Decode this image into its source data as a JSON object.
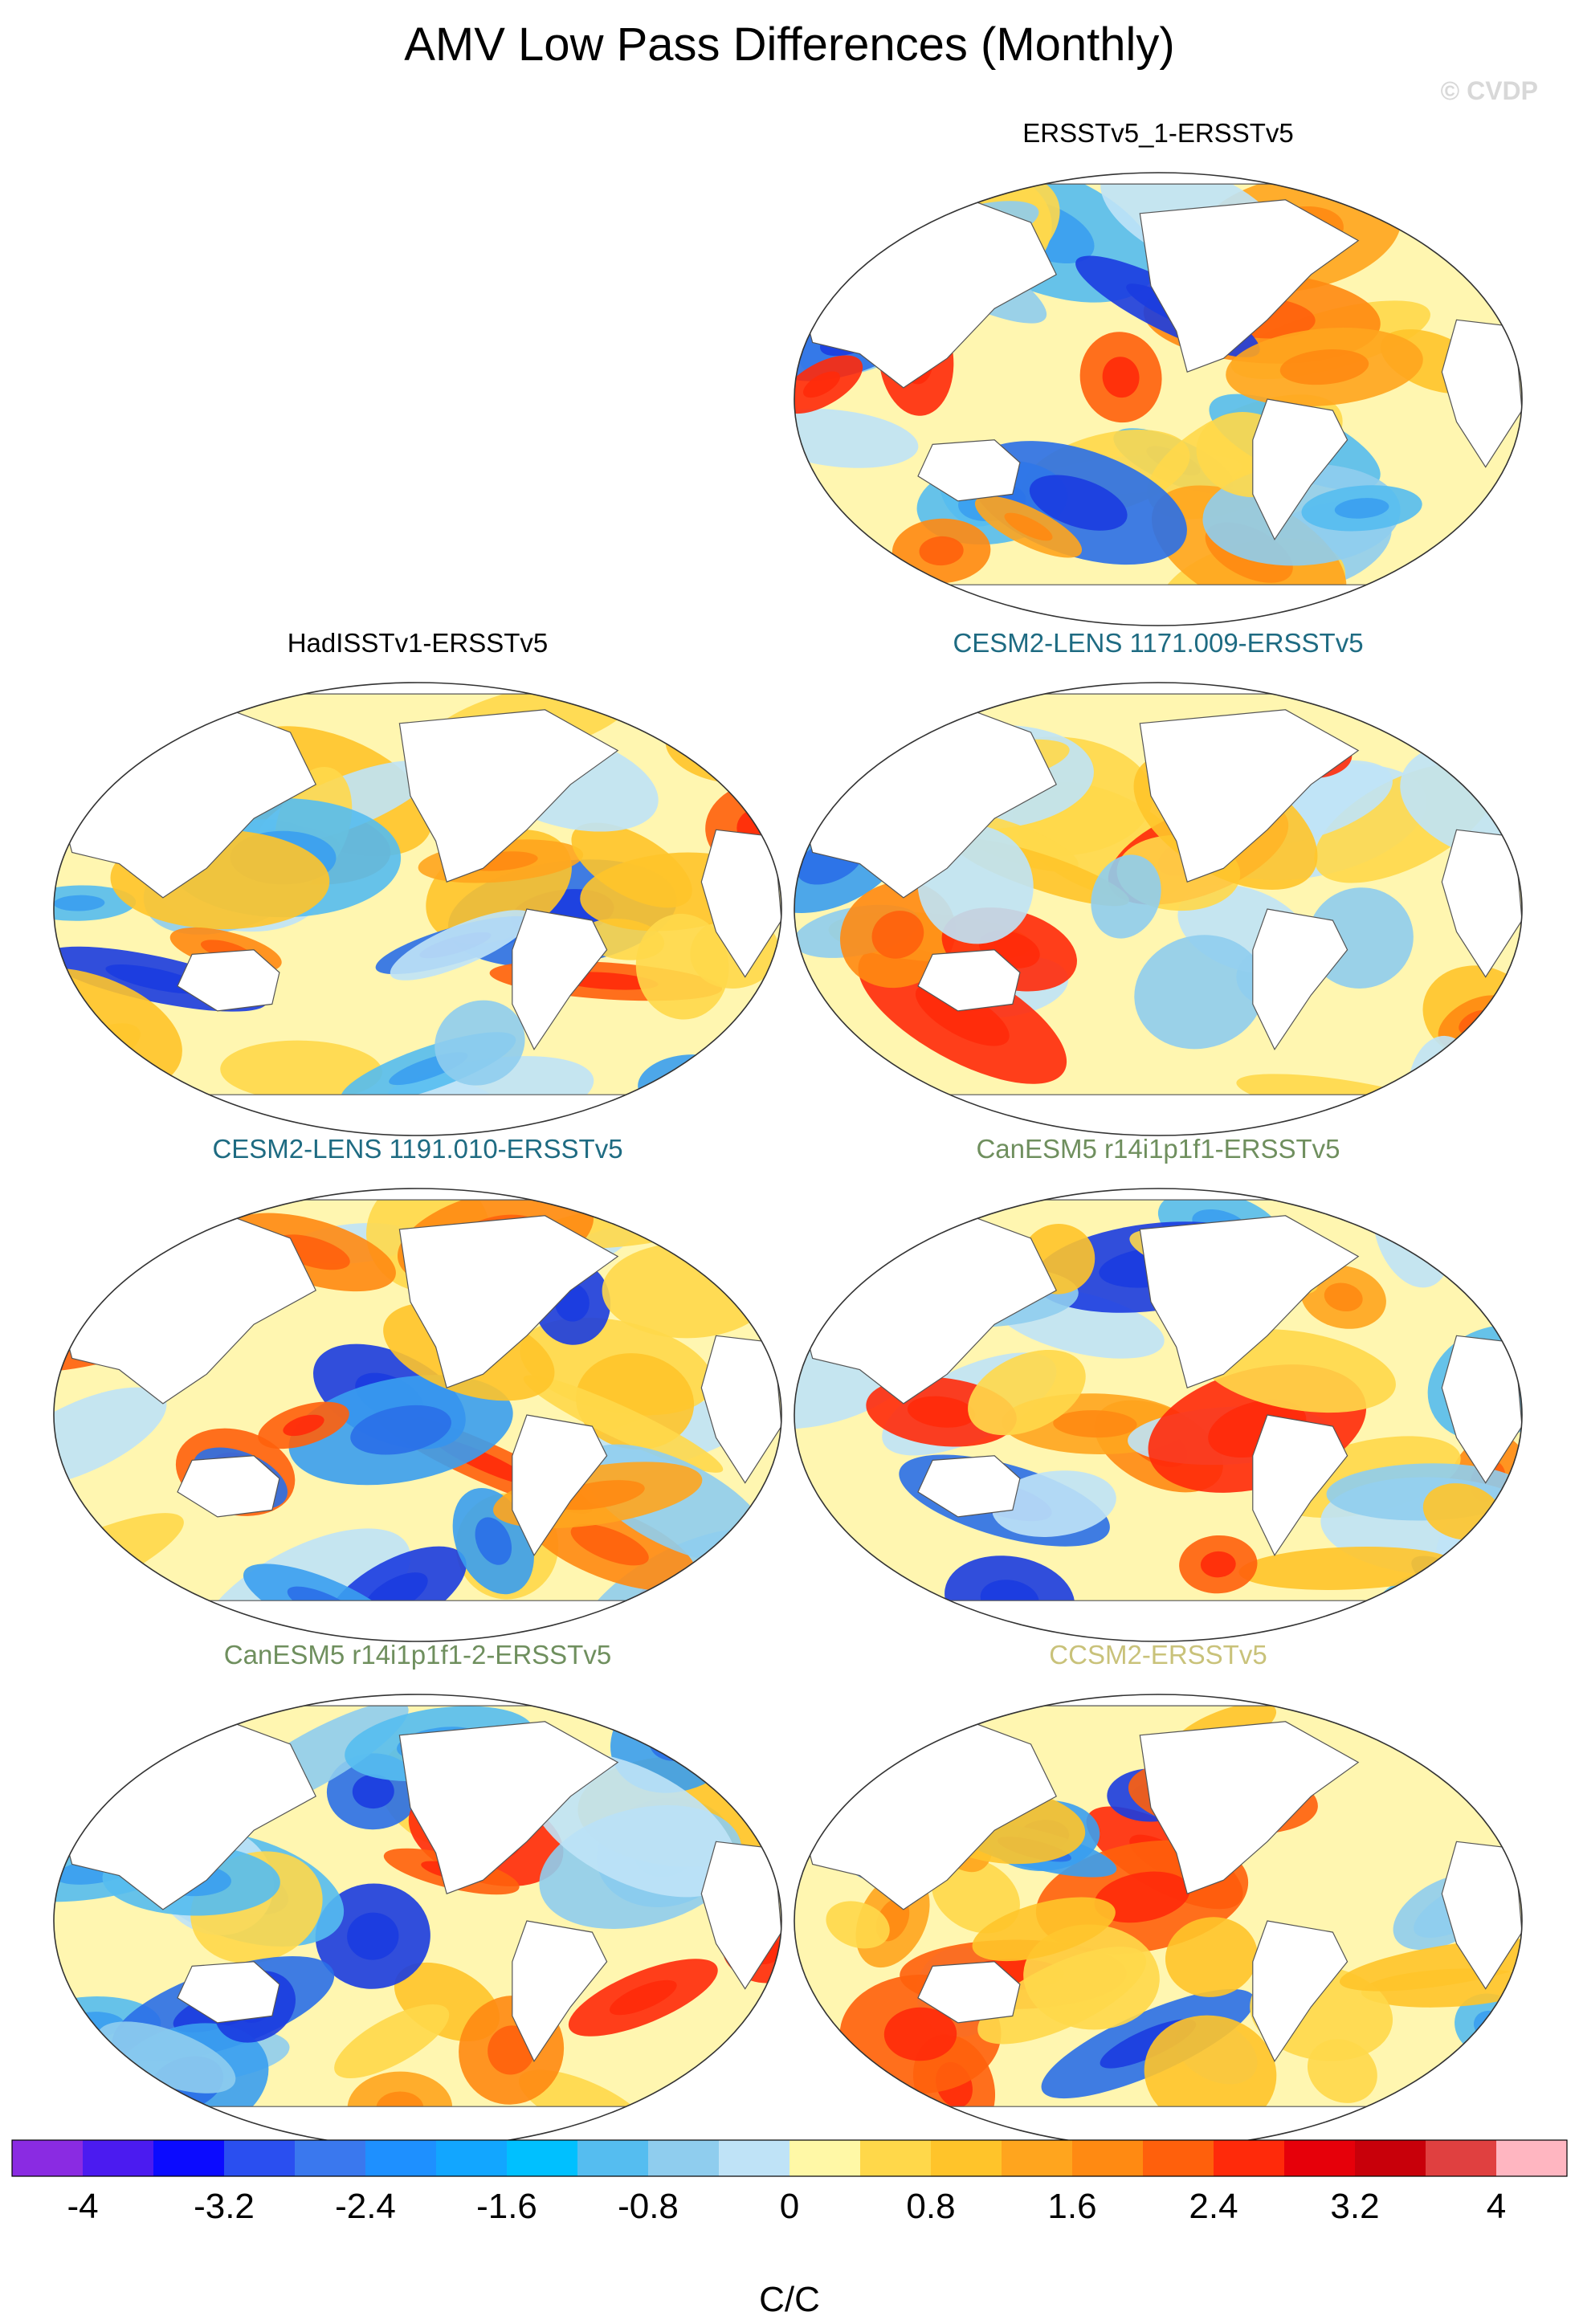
{
  "title": "AMV Low Pass Differences (Monthly)",
  "watermark": "© CVDP",
  "chart_data": {
    "type": "heatmap",
    "title": "AMV Low Pass Differences (Monthly)",
    "projection": "robinson-like global map (Pacific-centered)",
    "panels": [
      {
        "id": "ersst-1",
        "label": "ERSSTv5_1-ERSSTv5",
        "label_color": "#000000",
        "row": 0,
        "col": 1
      },
      {
        "id": "hadisst",
        "label": "HadISSTv1-ERSSTv5",
        "label_color": "#000000",
        "row": 1,
        "col": 0
      },
      {
        "id": "cesm-009",
        "label": "CESM2-LENS 1171.009-ERSSTv5",
        "label_color": "#1e6b82",
        "row": 1,
        "col": 1
      },
      {
        "id": "cesm-010",
        "label": "CESM2-LENS 1191.010-ERSSTv5",
        "label_color": "#1e6b82",
        "row": 2,
        "col": 0
      },
      {
        "id": "canesm-1",
        "label": "CanESM5 r14i1p1f1-ERSSTv5",
        "label_color": "#6f8f5e",
        "row": 2,
        "col": 1
      },
      {
        "id": "canesm-2",
        "label": "CanESM5 r14i1p1f1-2-ERSSTv5",
        "label_color": "#6f8f5e",
        "row": 3,
        "col": 0
      },
      {
        "id": "ccsm2",
        "label": "CCSM2-ERSSTv5",
        "label_color": "#c9c27a",
        "row": 3,
        "col": 1
      }
    ],
    "colorbar": {
      "label": "C/C",
      "range": [
        -4.4,
        4.4
      ],
      "step": 0.4,
      "tick_labels": [
        "-4",
        "-3.2",
        "-2.4",
        "-1.6",
        "-0.8",
        "0",
        "0.8",
        "1.6",
        "2.4",
        "3.2",
        "4"
      ],
      "tick_values": [
        -4,
        -3.2,
        -2.4,
        -1.6,
        -0.8,
        0,
        0.8,
        1.6,
        2.4,
        3.2,
        4
      ],
      "colors": [
        "#8a2be2",
        "#4b1bf0",
        "#0b0bff",
        "#2a4ff0",
        "#3a78ee",
        "#1e90ff",
        "#12a6ff",
        "#00c0ff",
        "#55bdf0",
        "#8fcdee",
        "#bfe3f7",
        "#fff8a6",
        "#ffd84a",
        "#ffc42a",
        "#ffa51e",
        "#ff8a12",
        "#ff600c",
        "#ff2a0a",
        "#e6000a",
        "#c8000a",
        "#e04040",
        "#ffb6c1"
      ]
    }
  }
}
